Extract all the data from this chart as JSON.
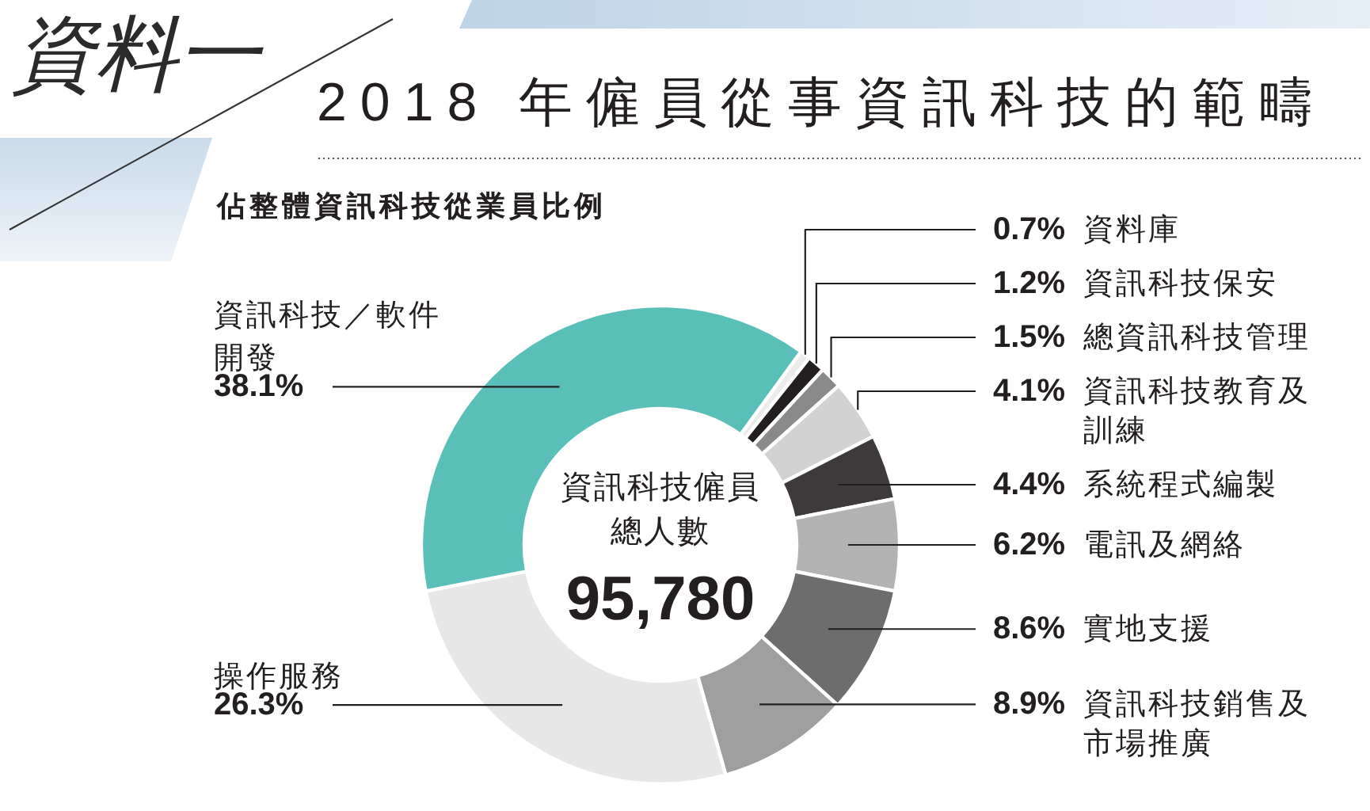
{
  "chart_data": {
    "type": "donut",
    "title": "2018 年僱員從事資訊科技的範疇",
    "subtitle": "佔整體資訊科技從業員比例",
    "categories": [
      "資料庫",
      "資訊科技保安",
      "總資訊科技管理",
      "資訊科技教育及訓練",
      "系統程式編製",
      "電訊及網絡",
      "實地支援",
      "資訊科技銷售及市場推廣",
      "操作服務",
      "資訊科技／軟件開發"
    ],
    "values": [
      0.7,
      1.2,
      1.5,
      4.1,
      4.4,
      6.2,
      8.6,
      8.9,
      26.3,
      38.1
    ],
    "colors": [
      "#ebebeb",
      "#231f20",
      "#8a8a8a",
      "#d2d2d2",
      "#3e3a3b",
      "#b3b3b3",
      "#6d6d6d",
      "#9f9f9f",
      "#e7e7e8",
      "#5bbfb9"
    ],
    "value_labels": [
      "0.7%",
      "1.2%",
      "1.5%",
      "4.1%",
      "4.4%",
      "6.2%",
      "8.6%",
      "8.9%",
      "26.3%",
      "38.1%"
    ],
    "annotations": [
      "資料一",
      "資訊科技僱員總人數",
      "95,780"
    ],
    "legend": false
  }
}
